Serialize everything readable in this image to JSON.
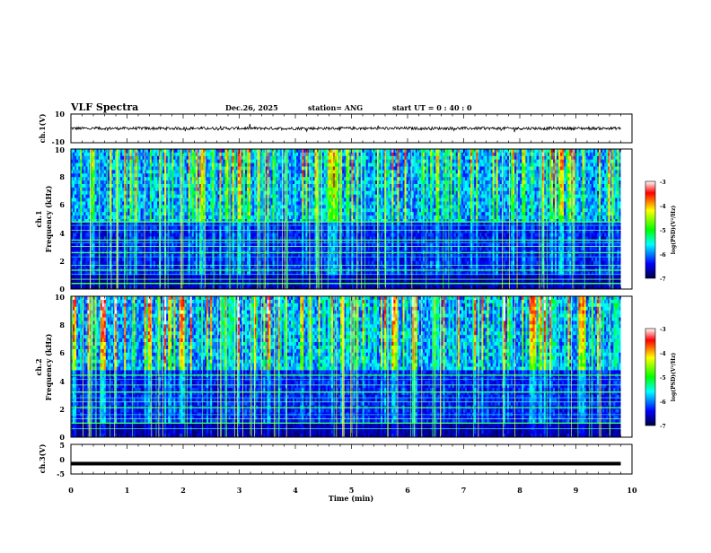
{
  "header": {
    "title": "VLF Spectra",
    "date": "Dec.26, 2025",
    "station": "station= ANG",
    "start": "start  UT =   0 : 40 : 0"
  },
  "chart_data": [
    {
      "type": "line",
      "panel": "ch1-waveform",
      "ylabel": "ch.1(V)",
      "yticks": [
        "10",
        "-10"
      ],
      "ylim": [
        -10,
        10
      ],
      "xlim": [
        0,
        10
      ],
      "approx_level": 0,
      "noise_amplitude": 1
    },
    {
      "type": "heatmap",
      "panel": "ch1-spectrogram",
      "ylabel": "ch.1",
      "ylabel2": "Frequency (kHz)",
      "yticks": [
        "0",
        "2",
        "4",
        "6",
        "8",
        "10"
      ],
      "ylim": [
        0,
        10
      ],
      "xlim": [
        0,
        10
      ],
      "data_xmax": 9.8,
      "colorbar": {
        "label": "log(PSD)(V²/Hz)",
        "ticks": [
          "-3",
          "-4",
          "-5",
          "-6",
          "-7"
        ],
        "range": [
          -7,
          -3
        ],
        "colors": [
          "#000040",
          "#0000ff",
          "#00ffff",
          "#00ff00",
          "#ffff00",
          "#ff0000",
          "#ffffff"
        ]
      },
      "bands_khz": [
        4.8,
        4.55,
        4.2,
        3.5,
        3.3,
        3.05,
        2.6,
        2.3,
        1.7,
        1.35,
        1.05,
        0.7,
        0.4
      ]
    },
    {
      "type": "heatmap",
      "panel": "ch2-spectrogram",
      "ylabel": "ch.2",
      "ylabel2": "Frequency (kHz)",
      "yticks": [
        "0",
        "2",
        "4",
        "6",
        "8",
        "10"
      ],
      "ylim": [
        0,
        10
      ],
      "xlim": [
        0,
        10
      ],
      "data_xmax": 9.8,
      "colorbar": {
        "label": "log(PSD)(V²/Hz)",
        "ticks": [
          "-3",
          "-4",
          "-5",
          "-6",
          "-7"
        ],
        "range": [
          -7,
          -3
        ],
        "colors": [
          "#000040",
          "#0000ff",
          "#00ffff",
          "#00ff00",
          "#ffff00",
          "#ff0000",
          "#ffffff"
        ]
      },
      "bands_khz": [
        4.4,
        4.1,
        3.7,
        3.2,
        2.8,
        2.5,
        2.1,
        1.6,
        1.3,
        1.0,
        0.6
      ]
    },
    {
      "type": "line",
      "panel": "ch3-waveform",
      "ylabel": "ch.3(V)",
      "yticks": [
        "5",
        "0",
        "-5"
      ],
      "ylim": [
        -5,
        5
      ],
      "xlim": [
        0,
        10
      ],
      "approx_level": -1.5,
      "data_xmax": 9.8
    }
  ],
  "xaxis": {
    "label": "Time  (min)",
    "ticks": [
      "0",
      "1",
      "2",
      "3",
      "4",
      "5",
      "6",
      "7",
      "8",
      "9",
      "10"
    ]
  }
}
